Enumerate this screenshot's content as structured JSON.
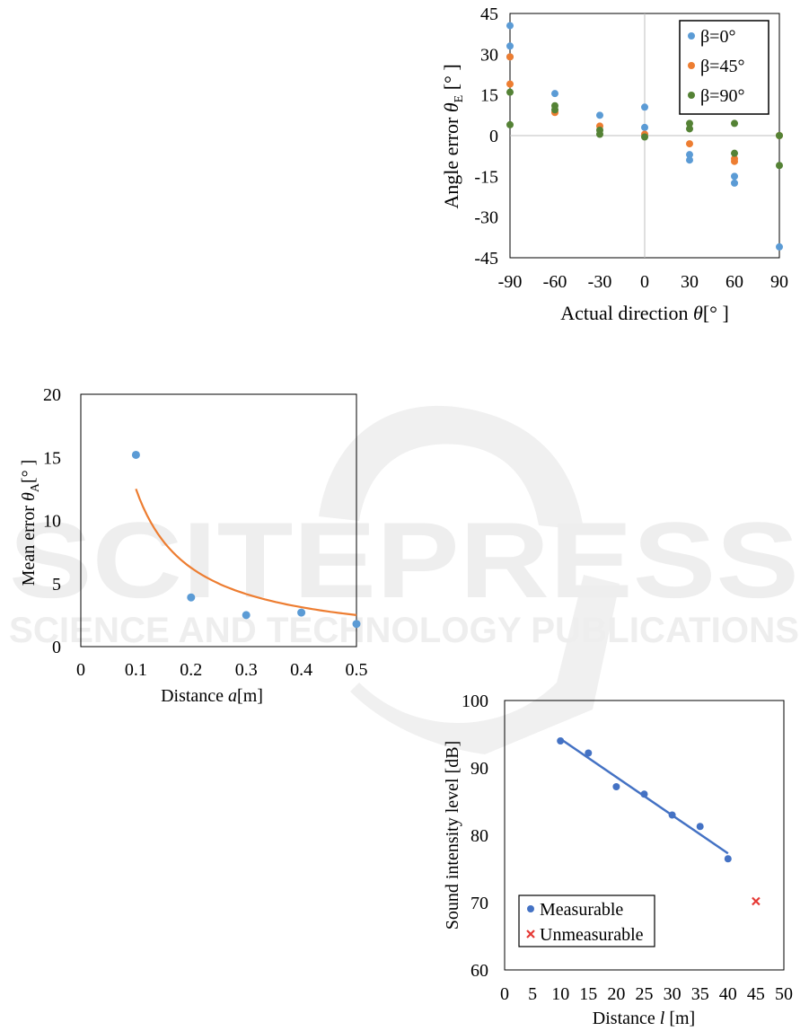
{
  "watermark": {
    "brand": "SCITEPRESS",
    "tagline": "SCIENCE AND TECHNOLOGY PUBLICATIONS"
  },
  "chart_data": [
    {
      "id": "angle",
      "type": "scatter",
      "xlabel": {
        "pre": "Actual direction ",
        "sym": "θ",
        "post": "[°   ]"
      },
      "ylabel": {
        "pre": "Angle error ",
        "sym": "θ",
        "sub": "E",
        "post": " [°   ]"
      },
      "xlim": [
        -90,
        90
      ],
      "ylim": [
        -45,
        45
      ],
      "xticks": [
        -90,
        -60,
        -30,
        0,
        30,
        60,
        90
      ],
      "yticks": [
        -45,
        -30,
        -15,
        0,
        15,
        30,
        45
      ],
      "zero_axes": true,
      "legend_position": "top-right",
      "series": [
        {
          "name": "β=0°",
          "color": "#5b9bd5",
          "points": [
            [
              -90,
              40.5
            ],
            [
              -90,
              33
            ],
            [
              -90,
              29
            ],
            [
              -60,
              15.5
            ],
            [
              -30,
              7.5
            ],
            [
              0,
              10.5
            ],
            [
              0,
              3
            ],
            [
              30,
              -7
            ],
            [
              30,
              -9
            ],
            [
              60,
              -15
            ],
            [
              60,
              -17.5
            ],
            [
              90,
              -41
            ]
          ]
        },
        {
          "name": "β=45°",
          "color": "#ed7d31",
          "points": [
            [
              -90,
              29
            ],
            [
              -90,
              19
            ],
            [
              -60,
              8.5
            ],
            [
              -30,
              3.5
            ],
            [
              0,
              0.5
            ],
            [
              30,
              -3
            ],
            [
              60,
              -8.5
            ],
            [
              60,
              -9.5
            ],
            [
              90,
              0
            ]
          ]
        },
        {
          "name": "β=90°",
          "color": "#548235",
          "points": [
            [
              -90,
              16
            ],
            [
              -90,
              4
            ],
            [
              -60,
              11
            ],
            [
              -60,
              9.5
            ],
            [
              -30,
              2
            ],
            [
              -30,
              0.5
            ],
            [
              0,
              -0.5
            ],
            [
              30,
              4.5
            ],
            [
              30,
              2.5
            ],
            [
              60,
              4.5
            ],
            [
              60,
              -6.5
            ],
            [
              90,
              -11
            ],
            [
              90,
              0
            ]
          ]
        }
      ]
    },
    {
      "id": "mean",
      "type": "scatter",
      "xlabel": {
        "pre": "Distance ",
        "sym": "a",
        "post": "[m]"
      },
      "ylabel": {
        "pre": "Mean error ",
        "sym": "θ",
        "sub": "A",
        "post": "[°   ]"
      },
      "xlim": [
        0,
        0.5
      ],
      "ylim": [
        0,
        20
      ],
      "xticks": [
        "0",
        "0.1",
        "0.2",
        "0.3",
        "0.4",
        "0.5"
      ],
      "yticks": [
        "0",
        "5",
        "10",
        "15",
        "20"
      ],
      "series": [
        {
          "color": "#5b9bd5",
          "x": [
            0.1,
            0.2,
            0.3,
            0.4,
            0.5
          ],
          "y": [
            15.2,
            3.9,
            2.5,
            2.7,
            1.8
          ]
        }
      ],
      "trendline": {
        "kind": "power",
        "color": "#ed7d31",
        "x_range": [
          0.1,
          0.5
        ],
        "coef": 1.25,
        "exponent": -1
      }
    },
    {
      "id": "intensity",
      "type": "scatter",
      "xlabel": {
        "pre": "Distance ",
        "sym": "l",
        "post": " [m]"
      },
      "ylabel": {
        "pre": "Sound intensity level [dB]"
      },
      "xlim": [
        0,
        50
      ],
      "ylim": [
        60,
        100
      ],
      "xticks": [
        "0",
        "5",
        "10",
        "15",
        "20",
        "25",
        "30",
        "35",
        "40",
        "45",
        "50"
      ],
      "yticks": [
        "60",
        "70",
        "80",
        "90",
        "100"
      ],
      "legend_position": "bottom-left",
      "series": [
        {
          "name": "Measurable",
          "marker": "circle",
          "color": "#4472c4",
          "x": [
            10,
            15,
            20,
            25,
            30,
            35,
            40
          ],
          "y": [
            94,
            92.2,
            87.2,
            86.1,
            83,
            81.3,
            76.5
          ]
        },
        {
          "name": "Unmeasurable",
          "marker": "x",
          "color": "#e53935",
          "x": [
            45
          ],
          "y": [
            70.2
          ]
        }
      ],
      "trendline": {
        "kind": "linear",
        "color": "#4472c4",
        "x_range": [
          10,
          40
        ],
        "y_range": [
          94.3,
          77.3
        ]
      }
    }
  ]
}
